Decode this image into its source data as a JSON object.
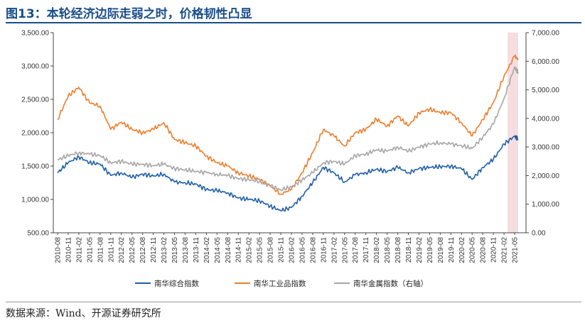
{
  "title": "图13：本轮经济边际走弱之时，价格韧性凸显",
  "source": "数据来源：Wind、开源证券研究所",
  "chart_data": {
    "type": "line",
    "x_ticks": [
      "2010-08",
      "2010-11",
      "2011-02",
      "2011-05",
      "2011-08",
      "2011-11",
      "2012-02",
      "2012-05",
      "2012-08",
      "2012-11",
      "2013-02",
      "2013-05",
      "2013-08",
      "2013-11",
      "2014-02",
      "2014-05",
      "2014-08",
      "2014-11",
      "2015-02",
      "2015-05",
      "2015-08",
      "2015-11",
      "2016-02",
      "2016-05",
      "2016-08",
      "2016-11",
      "2017-02",
      "2017-05",
      "2017-08",
      "2017-11",
      "2018-02",
      "2018-05",
      "2018-08",
      "2018-11",
      "2019-02",
      "2019-05",
      "2019-08",
      "2019-11",
      "2020-02",
      "2020-05",
      "2020-08",
      "2020-11",
      "2021-02",
      "2021-05"
    ],
    "y_left": {
      "min": 500,
      "max": 3500,
      "ticks": [
        "500.00",
        "1,000.00",
        "1,500.00",
        "2,000.00",
        "2,500.00",
        "3,000.00",
        "3,500.00"
      ]
    },
    "y_right": {
      "min": 0,
      "max": 7000,
      "ticks": [
        "0.00",
        "1,000.00",
        "2,000.00",
        "3,000.00",
        "4,000.00",
        "5,000.00",
        "6,000.00",
        "7,000.00"
      ]
    },
    "highlight": {
      "from": "2021-03",
      "to": "2021-06",
      "color": "#f6dde0"
    },
    "series": [
      {
        "name": "南华综合指数",
        "axis": "left",
        "color": "#1f5fa8",
        "dates": [
          "2010-08",
          "2010-11",
          "2011-02",
          "2011-05",
          "2011-08",
          "2011-11",
          "2012-02",
          "2012-05",
          "2012-08",
          "2012-11",
          "2013-02",
          "2013-05",
          "2013-08",
          "2013-11",
          "2014-02",
          "2014-05",
          "2014-08",
          "2014-11",
          "2015-02",
          "2015-05",
          "2015-08",
          "2015-11",
          "2016-02",
          "2016-05",
          "2016-08",
          "2016-11",
          "2017-02",
          "2017-05",
          "2017-08",
          "2017-11",
          "2018-02",
          "2018-05",
          "2018-08",
          "2018-11",
          "2019-02",
          "2019-05",
          "2019-08",
          "2019-11",
          "2020-02",
          "2020-05",
          "2020-08",
          "2020-11",
          "2021-02",
          "2021-05",
          "2021-06"
        ],
        "values": [
          1400,
          1550,
          1640,
          1550,
          1530,
          1360,
          1400,
          1330,
          1380,
          1350,
          1380,
          1260,
          1250,
          1230,
          1150,
          1130,
          1100,
          1020,
          1000,
          980,
          900,
          830,
          880,
          1050,
          1250,
          1480,
          1400,
          1260,
          1370,
          1400,
          1450,
          1420,
          1480,
          1400,
          1460,
          1480,
          1490,
          1500,
          1460,
          1300,
          1480,
          1600,
          1830,
          1950,
          1900
        ]
      },
      {
        "name": "南华工业品指数",
        "axis": "left",
        "color": "#ee7d2b",
        "dates": [
          "2010-08",
          "2010-11",
          "2011-02",
          "2011-05",
          "2011-08",
          "2011-11",
          "2012-02",
          "2012-05",
          "2012-08",
          "2012-11",
          "2013-02",
          "2013-05",
          "2013-08",
          "2013-11",
          "2014-02",
          "2014-05",
          "2014-08",
          "2014-11",
          "2015-02",
          "2015-05",
          "2015-08",
          "2015-11",
          "2016-02",
          "2016-05",
          "2016-08",
          "2016-11",
          "2017-02",
          "2017-05",
          "2017-08",
          "2017-11",
          "2018-02",
          "2018-05",
          "2018-08",
          "2018-11",
          "2019-02",
          "2019-05",
          "2019-08",
          "2019-11",
          "2020-02",
          "2020-05",
          "2020-08",
          "2020-11",
          "2021-02",
          "2021-05",
          "2021-06"
        ],
        "values": [
          2200,
          2550,
          2680,
          2450,
          2400,
          2050,
          2160,
          2050,
          2000,
          2050,
          2150,
          1900,
          1850,
          1800,
          1650,
          1550,
          1500,
          1400,
          1350,
          1300,
          1200,
          1080,
          1150,
          1400,
          1700,
          2050,
          1950,
          1800,
          2000,
          2050,
          2200,
          2100,
          2250,
          2100,
          2300,
          2350,
          2300,
          2300,
          2150,
          1950,
          2200,
          2450,
          2850,
          3150,
          3100
        ]
      },
      {
        "name": "南华金属指数（右轴）",
        "axis": "right",
        "color": "#a6a6a6",
        "dates": [
          "2010-08",
          "2010-11",
          "2011-02",
          "2011-05",
          "2011-08",
          "2011-11",
          "2012-02",
          "2012-05",
          "2012-08",
          "2012-11",
          "2013-02",
          "2013-05",
          "2013-08",
          "2013-11",
          "2014-02",
          "2014-05",
          "2014-08",
          "2014-11",
          "2015-02",
          "2015-05",
          "2015-08",
          "2015-11",
          "2016-02",
          "2016-05",
          "2016-08",
          "2016-11",
          "2017-02",
          "2017-05",
          "2017-08",
          "2017-11",
          "2018-02",
          "2018-05",
          "2018-08",
          "2018-11",
          "2019-02",
          "2019-05",
          "2019-08",
          "2019-11",
          "2020-02",
          "2020-05",
          "2020-08",
          "2020-11",
          "2021-02",
          "2021-05",
          "2021-06"
        ],
        "values": [
          2550,
          2700,
          2800,
          2750,
          2700,
          2450,
          2500,
          2400,
          2400,
          2350,
          2400,
          2250,
          2200,
          2150,
          2100,
          2050,
          2000,
          1900,
          1850,
          1800,
          1650,
          1500,
          1600,
          1850,
          2100,
          2450,
          2500,
          2400,
          2700,
          2750,
          2900,
          2850,
          3000,
          2850,
          3000,
          3100,
          3150,
          3100,
          3050,
          2950,
          3350,
          3800,
          4700,
          5800,
          5600
        ]
      }
    ]
  }
}
